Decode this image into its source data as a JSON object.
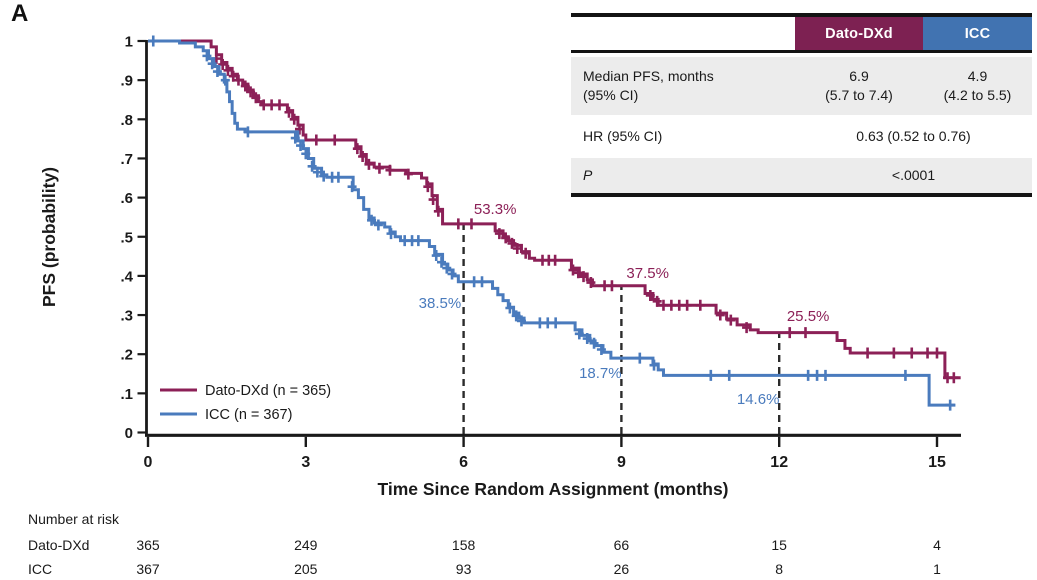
{
  "figure": {
    "panel_label": "A"
  },
  "colors": {
    "dato": "#8C2057",
    "icc": "#4A7BBD",
    "dato_header_bg": "#7D2152",
    "icc_header_bg": "#4173B1",
    "row_alt_bg": "#ECECEC",
    "axis": "#1A1A1A",
    "dashed": "#2B2B2B",
    "text": "#1A1A1A"
  },
  "stats_table": {
    "header_dato": "Dato-DXd",
    "header_icc": "ICC",
    "row1_label_line1": "Median PFS, months",
    "row1_label_line2": "(95% CI)",
    "row1_dato_line1": "6.9",
    "row1_dato_line2": "(5.7 to 7.4)",
    "row1_icc_line1": "4.9",
    "row1_icc_line2": "(4.2 to 5.5)",
    "row2_label": "HR (95% CI)",
    "row2_value": "0.63 (0.52 to 0.76)",
    "row3_label": "P",
    "row3_value": "<.0001"
  },
  "chart_data": {
    "type": "line",
    "subtype": "kaplan_meier_step",
    "title": "",
    "xlabel": "Time Since Random Assignment (months)",
    "ylabel": "PFS (probability)",
    "xlim": [
      0,
      15.6
    ],
    "ylim": [
      0,
      1
    ],
    "grid": false,
    "legend_position": "lower-left-inside",
    "xticks": [
      0,
      3,
      6,
      9,
      12,
      15
    ],
    "yticks": [
      {
        "v": 0.0,
        "label": "0"
      },
      {
        "v": 0.1,
        "label": ".1"
      },
      {
        "v": 0.2,
        "label": ".2"
      },
      {
        "v": 0.3,
        "label": ".3"
      },
      {
        "v": 0.4,
        "label": ".4"
      },
      {
        "v": 0.5,
        "label": ".5"
      },
      {
        "v": 0.6,
        "label": ".6"
      },
      {
        "v": 0.7,
        "label": ".7"
      },
      {
        "v": 0.8,
        "label": ".8"
      },
      {
        "v": 0.9,
        "label": ".9"
      },
      {
        "v": 1.0,
        "label": "1"
      }
    ],
    "series": [
      {
        "id": "dato-dxd",
        "name": "Dato-DXd (n = 365)",
        "color_key": "dato",
        "median_pfs_months": 6.9,
        "steps": [
          [
            0,
            1
          ],
          [
            1.1,
            1
          ],
          [
            1.2,
            0.985
          ],
          [
            1.3,
            0.965
          ],
          [
            1.4,
            0.945
          ],
          [
            1.5,
            0.93
          ],
          [
            1.6,
            0.915
          ],
          [
            1.7,
            0.9
          ],
          [
            1.8,
            0.89
          ],
          [
            1.9,
            0.875
          ],
          [
            2.0,
            0.86
          ],
          [
            2.1,
            0.845
          ],
          [
            2.15,
            0.837
          ],
          [
            2.55,
            0.837
          ],
          [
            2.65,
            0.822
          ],
          [
            2.75,
            0.805
          ],
          [
            2.85,
            0.785
          ],
          [
            2.95,
            0.76
          ],
          [
            3.0,
            0.747
          ],
          [
            3.85,
            0.747
          ],
          [
            3.95,
            0.73
          ],
          [
            4.05,
            0.71
          ],
          [
            4.15,
            0.688
          ],
          [
            4.3,
            0.678
          ],
          [
            4.6,
            0.67
          ],
          [
            4.9,
            0.662
          ],
          [
            5.2,
            0.65
          ],
          [
            5.3,
            0.635
          ],
          [
            5.4,
            0.605
          ],
          [
            5.5,
            0.57
          ],
          [
            5.6,
            0.533
          ],
          [
            6.5,
            0.533
          ],
          [
            6.6,
            0.515
          ],
          [
            6.75,
            0.5
          ],
          [
            6.85,
            0.49
          ],
          [
            6.95,
            0.478
          ],
          [
            7.1,
            0.462
          ],
          [
            7.25,
            0.445
          ],
          [
            7.35,
            0.44
          ],
          [
            7.95,
            0.44
          ],
          [
            8.05,
            0.42
          ],
          [
            8.2,
            0.405
          ],
          [
            8.35,
            0.39
          ],
          [
            8.45,
            0.375
          ],
          [
            9.35,
            0.375
          ],
          [
            9.45,
            0.355
          ],
          [
            9.6,
            0.34
          ],
          [
            9.7,
            0.325
          ],
          [
            10.65,
            0.325
          ],
          [
            10.8,
            0.305
          ],
          [
            11.0,
            0.29
          ],
          [
            11.2,
            0.275
          ],
          [
            11.45,
            0.262
          ],
          [
            11.6,
            0.255
          ],
          [
            13.0,
            0.255
          ],
          [
            13.1,
            0.235
          ],
          [
            13.25,
            0.215
          ],
          [
            13.35,
            0.203
          ],
          [
            15.1,
            0.203
          ],
          [
            15.15,
            0.14
          ],
          [
            15.45,
            0.14
          ]
        ],
        "censors": [
          [
            1.3,
            0.955
          ],
          [
            1.42,
            0.94
          ],
          [
            1.52,
            0.925
          ],
          [
            1.62,
            0.91
          ],
          [
            1.72,
            0.9
          ],
          [
            1.85,
            0.885
          ],
          [
            1.95,
            0.87
          ],
          [
            2.05,
            0.855
          ],
          [
            2.2,
            0.837
          ],
          [
            2.35,
            0.837
          ],
          [
            2.5,
            0.837
          ],
          [
            2.68,
            0.818
          ],
          [
            2.78,
            0.8
          ],
          [
            2.88,
            0.775
          ],
          [
            3.2,
            0.747
          ],
          [
            3.55,
            0.747
          ],
          [
            3.98,
            0.725
          ],
          [
            4.08,
            0.705
          ],
          [
            4.2,
            0.685
          ],
          [
            4.4,
            0.675
          ],
          [
            4.6,
            0.67
          ],
          [
            4.95,
            0.66
          ],
          [
            5.32,
            0.628
          ],
          [
            5.42,
            0.595
          ],
          [
            5.52,
            0.565
          ],
          [
            5.9,
            0.533
          ],
          [
            6.15,
            0.533
          ],
          [
            6.68,
            0.508
          ],
          [
            6.8,
            0.497
          ],
          [
            6.92,
            0.483
          ],
          [
            7.02,
            0.47
          ],
          [
            7.18,
            0.458
          ],
          [
            7.5,
            0.44
          ],
          [
            7.62,
            0.44
          ],
          [
            7.74,
            0.44
          ],
          [
            8.08,
            0.415
          ],
          [
            8.18,
            0.408
          ],
          [
            8.28,
            0.398
          ],
          [
            8.42,
            0.383
          ],
          [
            8.68,
            0.375
          ],
          [
            8.82,
            0.375
          ],
          [
            9.55,
            0.35
          ],
          [
            9.68,
            0.335
          ],
          [
            9.8,
            0.325
          ],
          [
            9.95,
            0.325
          ],
          [
            10.1,
            0.325
          ],
          [
            10.25,
            0.325
          ],
          [
            10.5,
            0.325
          ],
          [
            10.88,
            0.3
          ],
          [
            11.08,
            0.287
          ],
          [
            11.38,
            0.268
          ],
          [
            12.2,
            0.255
          ],
          [
            12.5,
            0.255
          ],
          [
            13.68,
            0.203
          ],
          [
            14.18,
            0.203
          ],
          [
            14.52,
            0.203
          ],
          [
            14.82,
            0.203
          ],
          [
            15.0,
            0.203
          ],
          [
            15.2,
            0.14
          ],
          [
            15.32,
            0.14
          ]
        ]
      },
      {
        "id": "icc",
        "name": "ICC (n = 367)",
        "color_key": "icc",
        "median_pfs_months": 4.9,
        "steps": [
          [
            0,
            1
          ],
          [
            0.3,
            1
          ],
          [
            0.6,
            0.995
          ],
          [
            0.9,
            0.985
          ],
          [
            1.05,
            0.975
          ],
          [
            1.15,
            0.955
          ],
          [
            1.25,
            0.935
          ],
          [
            1.35,
            0.915
          ],
          [
            1.45,
            0.895
          ],
          [
            1.5,
            0.87
          ],
          [
            1.55,
            0.845
          ],
          [
            1.6,
            0.815
          ],
          [
            1.65,
            0.79
          ],
          [
            1.7,
            0.775
          ],
          [
            1.85,
            0.768
          ],
          [
            2.75,
            0.768
          ],
          [
            2.85,
            0.745
          ],
          [
            2.95,
            0.725
          ],
          [
            3.05,
            0.7
          ],
          [
            3.15,
            0.675
          ],
          [
            3.3,
            0.658
          ],
          [
            3.4,
            0.652
          ],
          [
            3.8,
            0.652
          ],
          [
            3.9,
            0.62
          ],
          [
            4.0,
            0.6
          ],
          [
            4.1,
            0.57
          ],
          [
            4.2,
            0.548
          ],
          [
            4.3,
            0.535
          ],
          [
            4.5,
            0.525
          ],
          [
            4.6,
            0.512
          ],
          [
            4.7,
            0.5
          ],
          [
            4.8,
            0.49
          ],
          [
            5.25,
            0.49
          ],
          [
            5.35,
            0.475
          ],
          [
            5.45,
            0.455
          ],
          [
            5.6,
            0.43
          ],
          [
            5.7,
            0.415
          ],
          [
            5.8,
            0.4
          ],
          [
            5.9,
            0.385
          ],
          [
            6.45,
            0.385
          ],
          [
            6.55,
            0.368
          ],
          [
            6.65,
            0.352
          ],
          [
            6.75,
            0.337
          ],
          [
            6.85,
            0.32
          ],
          [
            6.95,
            0.305
          ],
          [
            7.05,
            0.292
          ],
          [
            7.15,
            0.28
          ],
          [
            8.0,
            0.28
          ],
          [
            8.12,
            0.262
          ],
          [
            8.25,
            0.248
          ],
          [
            8.4,
            0.234
          ],
          [
            8.5,
            0.222
          ],
          [
            8.65,
            0.205
          ],
          [
            8.8,
            0.19
          ],
          [
            9.5,
            0.19
          ],
          [
            9.6,
            0.175
          ],
          [
            9.7,
            0.16
          ],
          [
            9.8,
            0.146
          ],
          [
            14.8,
            0.146
          ],
          [
            14.85,
            0.07
          ],
          [
            15.35,
            0.07
          ]
        ],
        "censors": [
          [
            0.1,
            1
          ],
          [
            1.12,
            0.962
          ],
          [
            1.22,
            0.942
          ],
          [
            1.32,
            0.922
          ],
          [
            1.47,
            0.9
          ],
          [
            1.9,
            0.768
          ],
          [
            2.8,
            0.752
          ],
          [
            2.9,
            0.733
          ],
          [
            3.0,
            0.712
          ],
          [
            3.12,
            0.68
          ],
          [
            3.22,
            0.665
          ],
          [
            3.34,
            0.655
          ],
          [
            3.5,
            0.652
          ],
          [
            3.62,
            0.652
          ],
          [
            3.88,
            0.628
          ],
          [
            4.25,
            0.542
          ],
          [
            4.38,
            0.53
          ],
          [
            4.62,
            0.508
          ],
          [
            4.88,
            0.49
          ],
          [
            5.02,
            0.49
          ],
          [
            5.14,
            0.49
          ],
          [
            5.48,
            0.452
          ],
          [
            5.58,
            0.435
          ],
          [
            5.68,
            0.42
          ],
          [
            5.78,
            0.405
          ],
          [
            6.2,
            0.385
          ],
          [
            6.35,
            0.385
          ],
          [
            6.88,
            0.318
          ],
          [
            7.0,
            0.298
          ],
          [
            7.1,
            0.285
          ],
          [
            7.45,
            0.28
          ],
          [
            7.6,
            0.28
          ],
          [
            7.75,
            0.28
          ],
          [
            8.2,
            0.252
          ],
          [
            8.35,
            0.24
          ],
          [
            8.48,
            0.228
          ],
          [
            8.62,
            0.212
          ],
          [
            9.35,
            0.19
          ],
          [
            9.62,
            0.172
          ],
          [
            10.7,
            0.146
          ],
          [
            11.05,
            0.146
          ],
          [
            12.55,
            0.146
          ],
          [
            12.72,
            0.146
          ],
          [
            12.88,
            0.146
          ],
          [
            14.4,
            0.146
          ],
          [
            15.25,
            0.07
          ]
        ]
      }
    ],
    "dashed_lines": [
      {
        "x": 6,
        "top": 0.533
      },
      {
        "x": 9,
        "top": 0.375
      },
      {
        "x": 12,
        "top": 0.255
      }
    ],
    "annotations": [
      {
        "text": "53.3%",
        "x": 6.6,
        "y": 0.558,
        "color_key": "dato"
      },
      {
        "text": "38.5%",
        "x": 5.55,
        "y": 0.318,
        "color_key": "icc"
      },
      {
        "text": "37.5%",
        "x": 9.5,
        "y": 0.395,
        "color_key": "dato"
      },
      {
        "text": "18.7%",
        "x": 8.6,
        "y": 0.139,
        "color_key": "icc"
      },
      {
        "text": "25.5%",
        "x": 12.55,
        "y": 0.285,
        "color_key": "dato"
      },
      {
        "text": "14.6%",
        "x": 11.6,
        "y": 0.073,
        "color_key": "icc"
      }
    ],
    "risk_table": {
      "title": "Number at risk",
      "times": [
        0,
        3,
        6,
        9,
        12,
        15
      ],
      "rows": [
        {
          "label": "Dato-DXd",
          "values": [
            "365",
            "249",
            "158",
            "66",
            "15",
            "4"
          ]
        },
        {
          "label": "ICC",
          "values": [
            "367",
            "205",
            "93",
            "26",
            "8",
            "1"
          ]
        }
      ]
    }
  }
}
